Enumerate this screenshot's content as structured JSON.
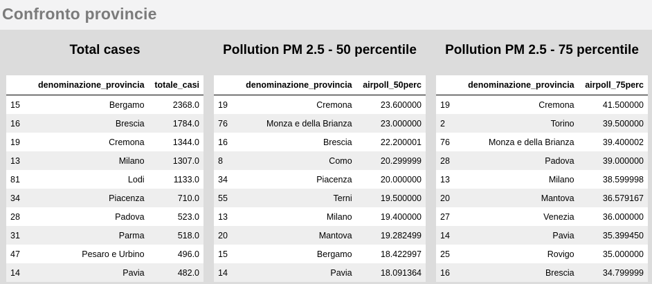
{
  "page": {
    "title": "Confronto provincie"
  },
  "tables": [
    {
      "title": "Total cases",
      "columns": [
        "",
        "denominazione_provincia",
        "totale_casi"
      ],
      "rows": [
        [
          "15",
          "Bergamo",
          "2368.0"
        ],
        [
          "16",
          "Brescia",
          "1784.0"
        ],
        [
          "19",
          "Cremona",
          "1344.0"
        ],
        [
          "13",
          "Milano",
          "1307.0"
        ],
        [
          "81",
          "Lodi",
          "1133.0"
        ],
        [
          "34",
          "Piacenza",
          "710.0"
        ],
        [
          "28",
          "Padova",
          "523.0"
        ],
        [
          "31",
          "Parma",
          "518.0"
        ],
        [
          "47",
          "Pesaro e Urbino",
          "496.0"
        ],
        [
          "14",
          "Pavia",
          "482.0"
        ]
      ]
    },
    {
      "title": "Pollution PM 2.5 - 50 percentile",
      "columns": [
        "",
        "denominazione_provincia",
        "airpoll_50perc"
      ],
      "rows": [
        [
          "19",
          "Cremona",
          "23.600000"
        ],
        [
          "76",
          "Monza e della Brianza",
          "23.000000"
        ],
        [
          "16",
          "Brescia",
          "22.200001"
        ],
        [
          "8",
          "Como",
          "20.299999"
        ],
        [
          "34",
          "Piacenza",
          "20.000000"
        ],
        [
          "55",
          "Terni",
          "19.500000"
        ],
        [
          "13",
          "Milano",
          "19.400000"
        ],
        [
          "20",
          "Mantova",
          "19.282499"
        ],
        [
          "15",
          "Bergamo",
          "18.422997"
        ],
        [
          "14",
          "Pavia",
          "18.091364"
        ]
      ]
    },
    {
      "title": "Pollution PM 2.5 - 75 percentile",
      "columns": [
        "",
        "denominazione_provincia",
        "airpoll_75perc"
      ],
      "rows": [
        [
          "19",
          "Cremona",
          "41.500000"
        ],
        [
          "2",
          "Torino",
          "39.500000"
        ],
        [
          "76",
          "Monza e della Brianza",
          "39.400002"
        ],
        [
          "28",
          "Padova",
          "39.000000"
        ],
        [
          "13",
          "Milano",
          "38.599998"
        ],
        [
          "20",
          "Mantova",
          "36.579167"
        ],
        [
          "27",
          "Venezia",
          "36.000000"
        ],
        [
          "14",
          "Pavia",
          "35.399450"
        ],
        [
          "25",
          "Rovigo",
          "35.000000"
        ],
        [
          "16",
          "Brescia",
          "34.799999"
        ]
      ]
    }
  ]
}
